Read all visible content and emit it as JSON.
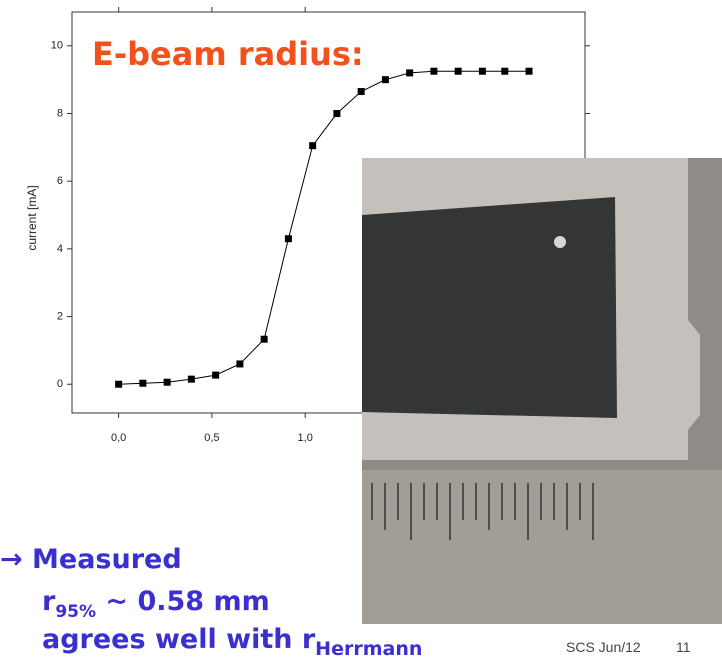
{
  "chart_data": {
    "type": "line",
    "title": "E-beam radius:",
    "y_label": "current [mA]",
    "x": [
      0,
      0.13,
      0.26,
      0.39,
      0.52,
      0.65,
      0.78,
      0.91,
      1.04,
      1.17,
      1.3,
      1.43,
      1.56,
      1.69,
      1.82,
      1.95,
      2.07,
      2.2
    ],
    "values": [
      0,
      0.03,
      0.06,
      0.15,
      0.27,
      0.6,
      1.33,
      4.3,
      7.05,
      8.0,
      8.65,
      9.0,
      9.2,
      9.25,
      9.25,
      9.25,
      9.25,
      9.25
    ],
    "color": "#000000",
    "xlim": [
      -0.25,
      2.5
    ],
    "ylim": [
      -0.85,
      11
    ],
    "xticks": [
      {
        "value": 0,
        "label": "0,0"
      },
      {
        "value": 0.5,
        "label": "0,5"
      },
      {
        "value": 1,
        "label": "1,0"
      }
    ],
    "yticks": [
      0,
      2,
      4,
      6,
      8,
      10
    ]
  },
  "slide": {
    "line1": "→ Measured",
    "line2": {
      "r": "r",
      "sub": "95%",
      "rest": " ~ 0.58 mm"
    },
    "line3": {
      "text": "agrees well with r",
      "sub": "Herrmann"
    },
    "footer": "SCS Jun/12",
    "page": "11"
  }
}
